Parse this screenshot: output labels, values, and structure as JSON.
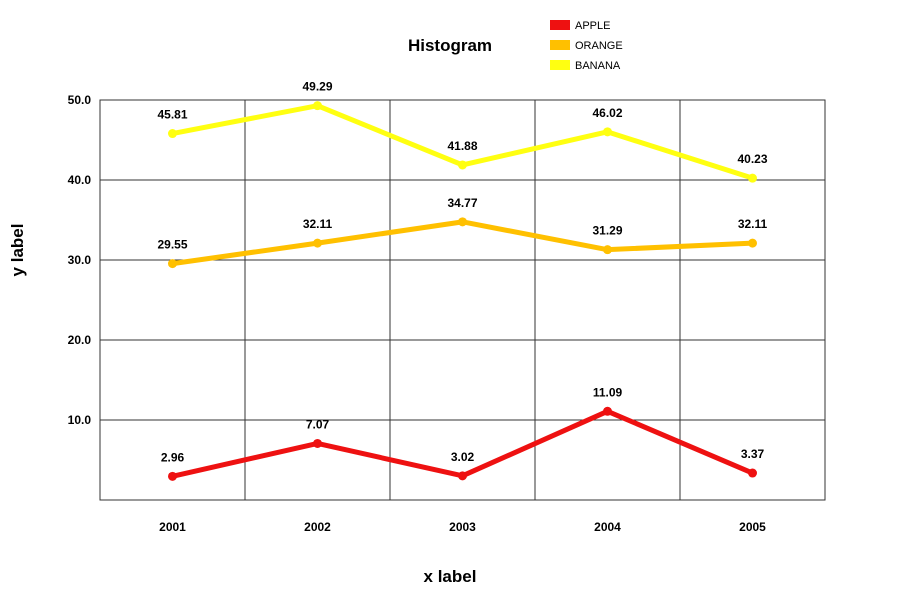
{
  "chart_data": {
    "type": "line",
    "title": "Histogram",
    "xlabel": "x label",
    "ylabel": "y label",
    "categories": [
      "2001",
      "2002",
      "2003",
      "2004",
      "2005"
    ],
    "ylim": [
      0,
      50
    ],
    "yticks": [
      10,
      20,
      30,
      40,
      50
    ],
    "ytick_labels": [
      "10.0",
      "20.0",
      "30.0",
      "40.0",
      "50.0"
    ],
    "grid": true,
    "legend_position": "top-right",
    "series": [
      {
        "name": "APPLE",
        "color": "#ee1111",
        "values": [
          2.96,
          7.07,
          3.02,
          11.09,
          3.37
        ],
        "labels": [
          "2.96",
          "7.07",
          "3.02",
          "11.09",
          "3.37"
        ]
      },
      {
        "name": "ORANGE",
        "color": "#ffc000",
        "values": [
          29.55,
          32.11,
          34.77,
          31.29,
          32.11
        ],
        "labels": [
          "29.55",
          "32.11",
          "34.77",
          "31.29",
          "32.11"
        ]
      },
      {
        "name": "BANANA",
        "color": "#ffff11",
        "values": [
          45.81,
          49.29,
          41.88,
          46.02,
          40.23
        ],
        "labels": [
          "45.81",
          "49.29",
          "41.88",
          "46.02",
          "40.23"
        ]
      }
    ]
  }
}
